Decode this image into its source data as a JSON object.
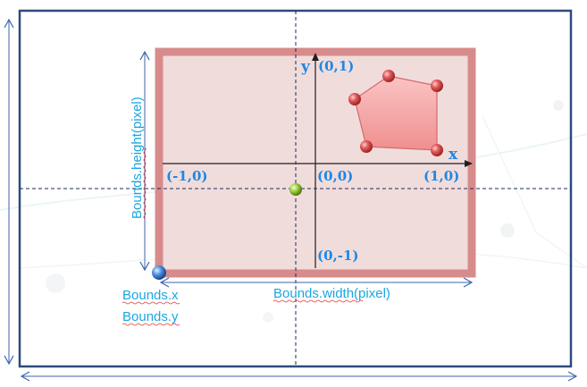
{
  "labels": {
    "y_axis": "y",
    "x_axis": "x",
    "top": "(0,1)",
    "left": "(-1,0)",
    "origin": "(0,0)",
    "right": "(1,0)",
    "bottom": "(0,-1)",
    "bounds_height": "Bounds.height(pixel)",
    "bounds_width": "Bounds.width(pixel)",
    "bounds_x": "Bounds.x",
    "bounds_y": "Bounds.y"
  },
  "colors": {
    "outer_frame": "#2e4a7e",
    "bounds_border": "#d88b8b",
    "bounds_fill": "#f1dcdc",
    "polygon_fill": "#f6a3a3",
    "polygon_stroke": "#d36b6b",
    "vertex": "#d94545",
    "center_point": "#8bc34a",
    "origin_point": "#3f7fd6",
    "text_blue": "#1aa7e0",
    "axis_line": "#1f1f1f",
    "guide_line": "#1b2b5a"
  },
  "icons": {
    "bounds_origin": "blue-sphere",
    "center": "green-sphere",
    "vertex": "red-sphere"
  }
}
